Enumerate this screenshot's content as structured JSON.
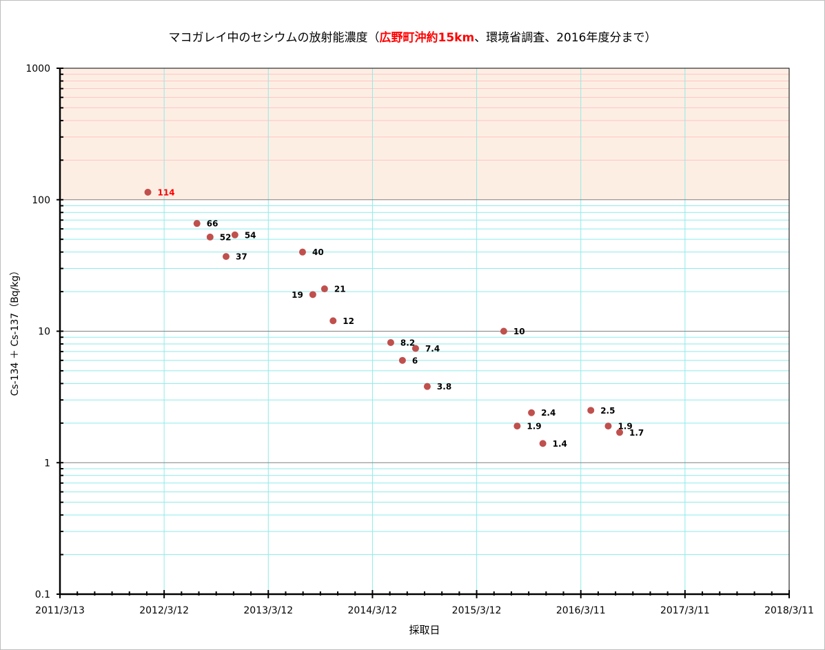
{
  "chart_data": {
    "type": "scatter",
    "title_parts": {
      "before": "マコガレイ中のセシウムの放射能濃度（",
      "highlight": "広野町沖約15km",
      "after": "、環境省調査、2016年度分まで）"
    },
    "xlabel": "採取日",
    "ylabel": "Cs-134 ＋ Cs-137（Bq/kg）",
    "x_scale": "date",
    "y_scale": "log",
    "xlim": [
      "2011-03-13",
      "2018-03-11"
    ],
    "ylim": [
      0.1,
      1000
    ],
    "x_ticks": [
      {
        "date": "2011-03-13",
        "label": "2011/3/13"
      },
      {
        "date": "2012-03-12",
        "label": "2012/3/12"
      },
      {
        "date": "2013-03-12",
        "label": "2013/3/12"
      },
      {
        "date": "2014-03-12",
        "label": "2014/3/12"
      },
      {
        "date": "2015-03-12",
        "label": "2015/3/12"
      },
      {
        "date": "2016-03-11",
        "label": "2016/3/11"
      },
      {
        "date": "2017-03-11",
        "label": "2017/3/11"
      },
      {
        "date": "2018-03-11",
        "label": "2018/3/11"
      }
    ],
    "y_ticks": [
      {
        "value": 0.1,
        "label": "0.1"
      },
      {
        "value": 1,
        "label": "1"
      },
      {
        "value": 10,
        "label": "10"
      },
      {
        "value": 100,
        "label": "100"
      },
      {
        "value": 1000,
        "label": "1000"
      }
    ],
    "grid": true,
    "shaded_band": {
      "from": 100,
      "to": 1000
    },
    "colors": {
      "marker": "#c0504d",
      "label_default": "#000000",
      "label_highlight": "#ff0000",
      "band": "#fdeee4",
      "band_lines": "#ffc4c4",
      "grid_minor": "#8eeaea",
      "grid_major": "#808080"
    },
    "points": [
      {
        "date": "2012-01-15",
        "value": 114,
        "label": "114",
        "label_side": "right",
        "highlight": true
      },
      {
        "date": "2012-07-05",
        "value": 66,
        "label": "66",
        "label_side": "right",
        "highlight": false
      },
      {
        "date": "2012-08-20",
        "value": 52,
        "label": "52",
        "label_side": "right",
        "highlight": false
      },
      {
        "date": "2012-10-15",
        "value": 37,
        "label": "37",
        "label_side": "right",
        "highlight": false
      },
      {
        "date": "2012-11-15",
        "value": 54,
        "label": "54",
        "label_side": "right",
        "highlight": false
      },
      {
        "date": "2013-07-10",
        "value": 40,
        "label": "40",
        "label_side": "right",
        "highlight": false
      },
      {
        "date": "2013-08-15",
        "value": 19,
        "label": "19",
        "label_side": "left",
        "highlight": false
      },
      {
        "date": "2013-09-25",
        "value": 21,
        "label": "21",
        "label_side": "right",
        "highlight": false
      },
      {
        "date": "2013-10-25",
        "value": 12,
        "label": "12",
        "label_side": "right",
        "highlight": false
      },
      {
        "date": "2014-05-15",
        "value": 8.2,
        "label": "8.2",
        "label_side": "right",
        "highlight": false
      },
      {
        "date": "2014-06-25",
        "value": 6,
        "label": "6",
        "label_side": "right",
        "highlight": false
      },
      {
        "date": "2014-08-10",
        "value": 7.4,
        "label": "7.4",
        "label_side": "right",
        "highlight": false
      },
      {
        "date": "2014-09-20",
        "value": 3.8,
        "label": "3.8",
        "label_side": "right",
        "highlight": false
      },
      {
        "date": "2015-06-15",
        "value": 10,
        "label": "10",
        "label_side": "right",
        "highlight": false
      },
      {
        "date": "2015-08-01",
        "value": 1.9,
        "label": "1.9",
        "label_side": "right",
        "highlight": false
      },
      {
        "date": "2015-09-20",
        "value": 2.4,
        "label": "2.4",
        "label_side": "right",
        "highlight": false
      },
      {
        "date": "2015-10-30",
        "value": 1.4,
        "label": "1.4",
        "label_side": "right",
        "highlight": false
      },
      {
        "date": "2016-04-15",
        "value": 2.5,
        "label": "2.5",
        "label_side": "right",
        "highlight": false
      },
      {
        "date": "2016-06-15",
        "value": 1.9,
        "label": "1.9",
        "label_side": "right",
        "highlight": false
      },
      {
        "date": "2016-07-25",
        "value": 1.7,
        "label": "1.7",
        "label_side": "right",
        "highlight": false
      }
    ]
  }
}
